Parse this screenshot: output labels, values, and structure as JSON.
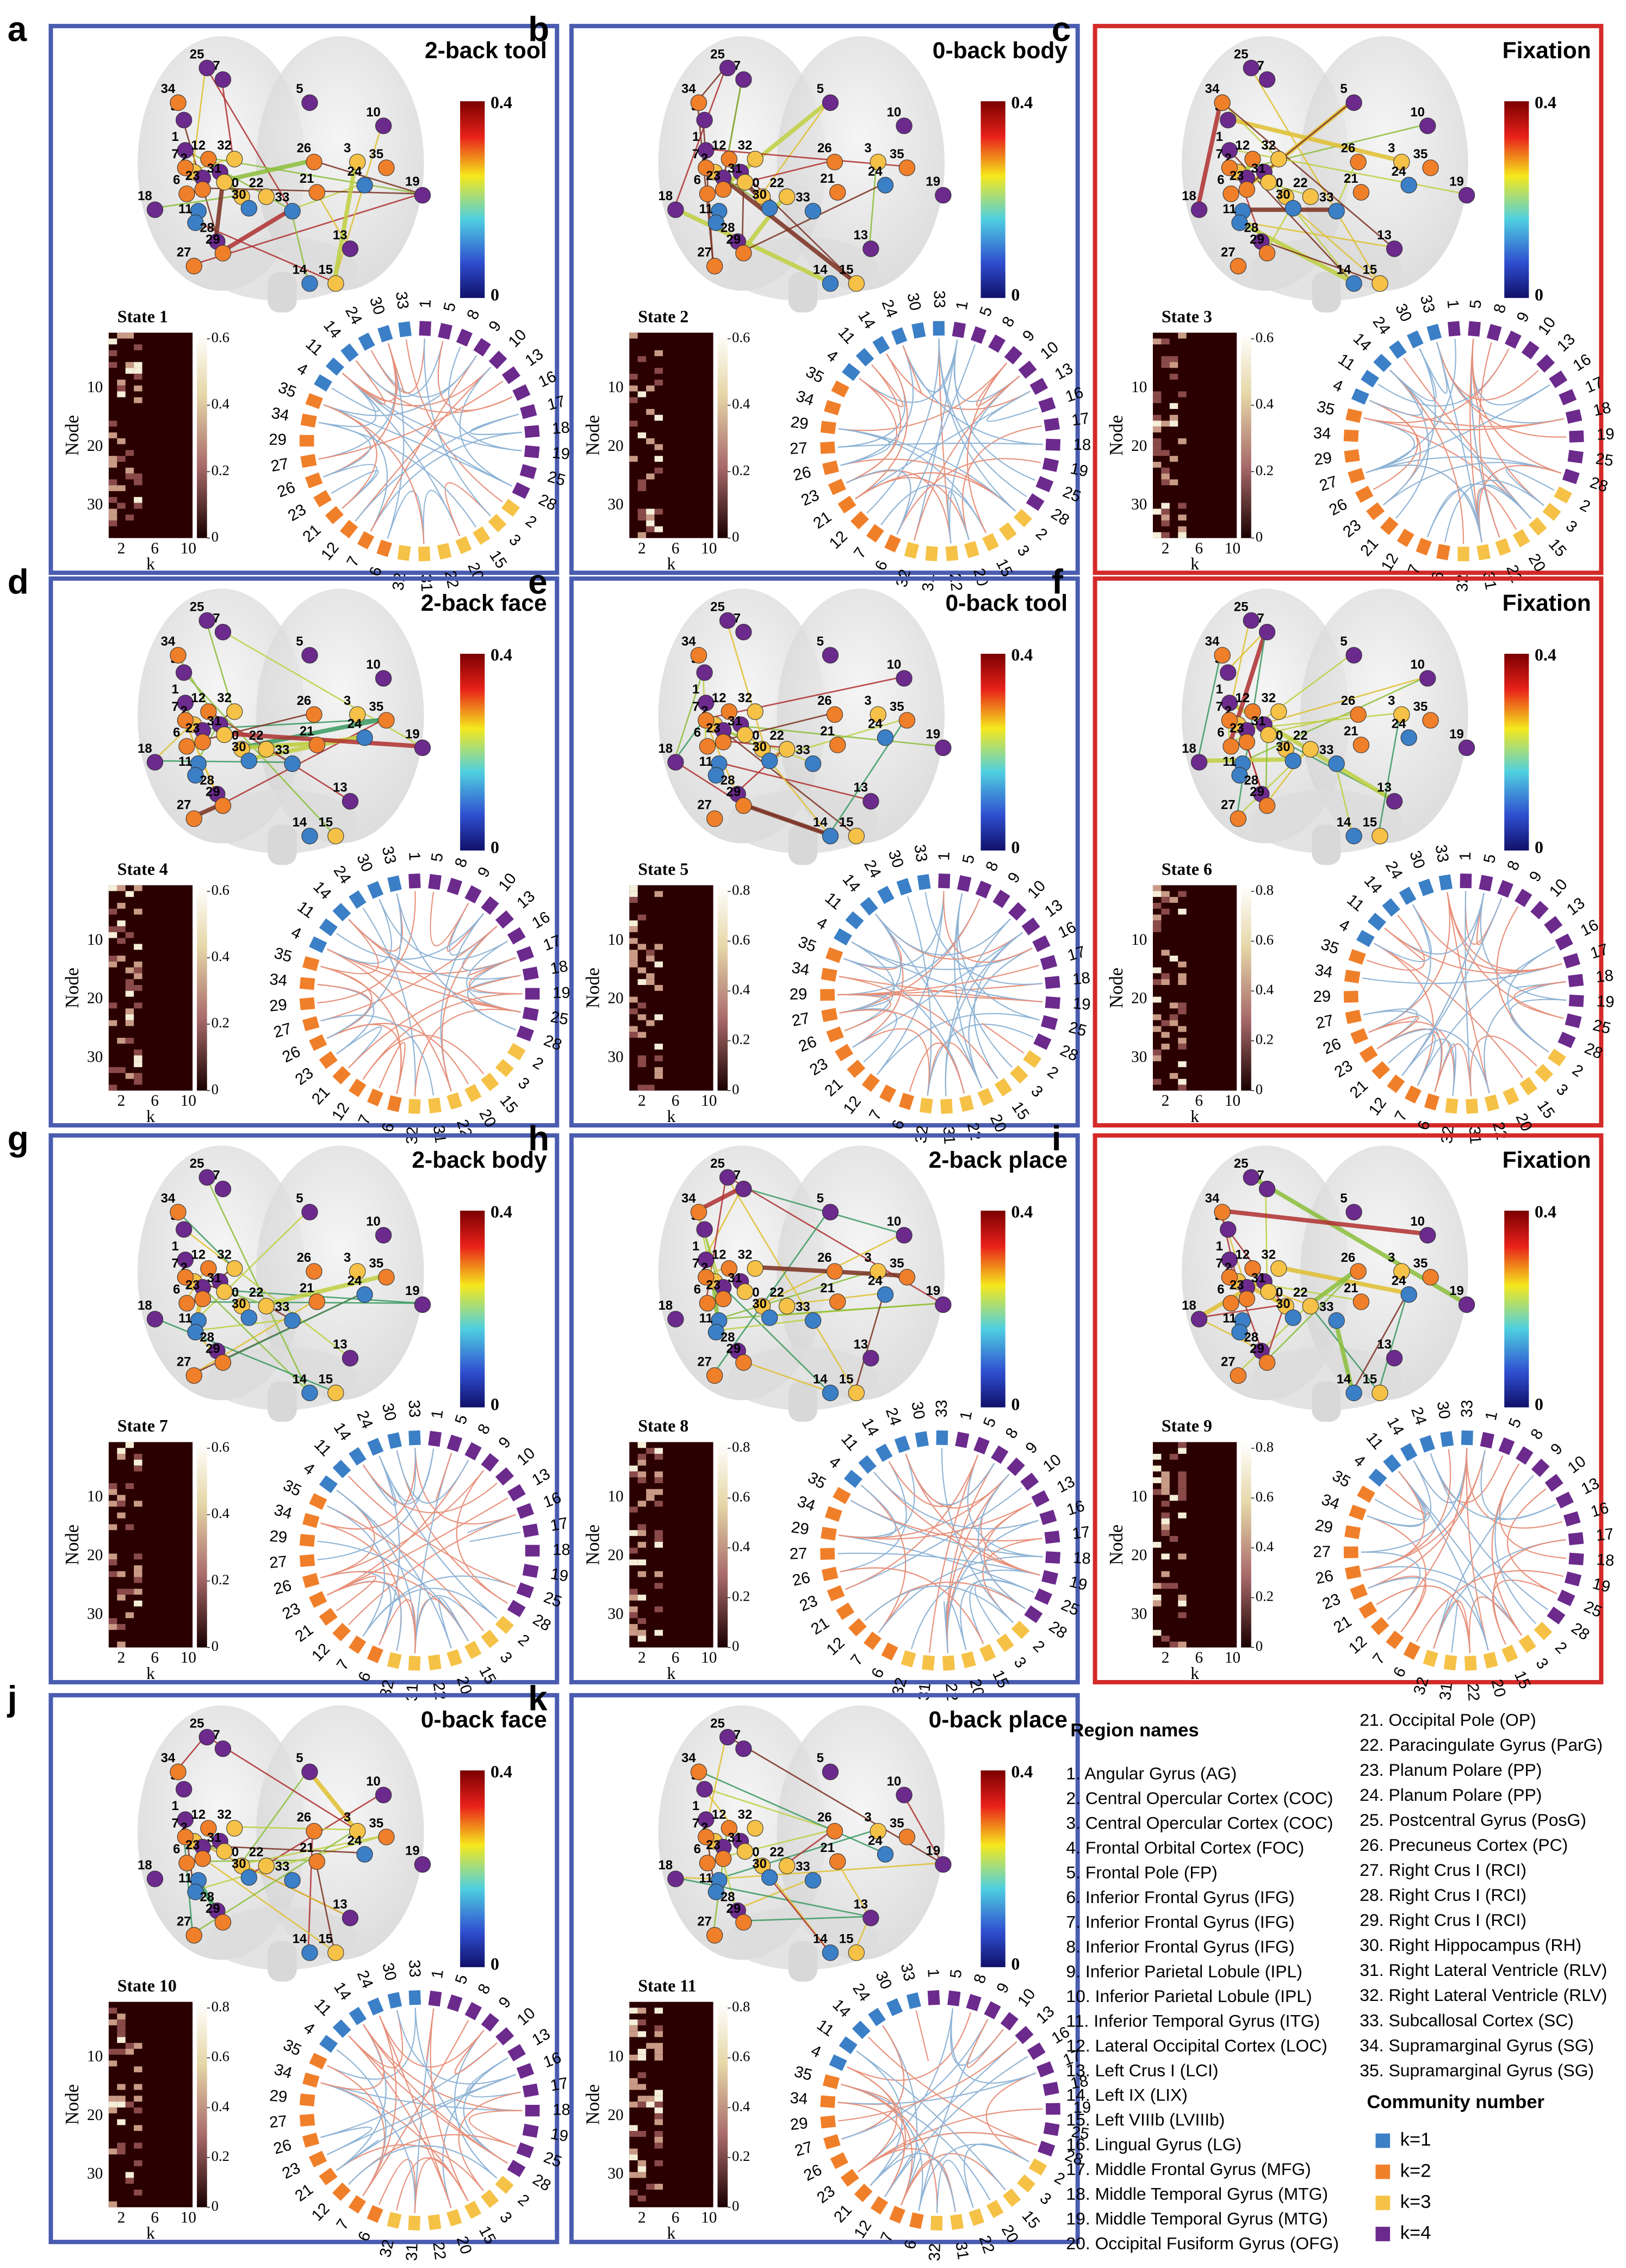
{
  "panels": [
    {
      "letter": "a",
      "title": "2-back tool",
      "state": "State 1",
      "frame": "#4a5cb0",
      "heat_ticks": [
        0,
        0.2,
        0.4,
        0.6
      ]
    },
    {
      "letter": "b",
      "title": "0-back body",
      "state": "State 2",
      "frame": "#4a5cb0",
      "heat_ticks": [
        0,
        0.2,
        0.4,
        0.6
      ]
    },
    {
      "letter": "c",
      "title": "Fixation",
      "state": "State 3",
      "frame": "#d42a2a",
      "heat_ticks": [
        0,
        0.2,
        0.4,
        0.6
      ]
    },
    {
      "letter": "d",
      "title": "2-back face",
      "state": "State 4",
      "frame": "#4a5cb0",
      "heat_ticks": [
        0,
        0.2,
        0.4,
        0.6
      ]
    },
    {
      "letter": "e",
      "title": "0-back tool",
      "state": "State 5",
      "frame": "#4a5cb0",
      "heat_ticks": [
        0,
        0.2,
        0.4,
        0.6,
        0.8
      ]
    },
    {
      "letter": "f",
      "title": "Fixation",
      "state": "State 6",
      "frame": "#d42a2a",
      "heat_ticks": [
        0,
        0.2,
        0.4,
        0.6,
        0.8
      ]
    },
    {
      "letter": "g",
      "title": "2-back body",
      "state": "State 7",
      "frame": "#4a5cb0",
      "heat_ticks": [
        0,
        0.2,
        0.4,
        0.6
      ]
    },
    {
      "letter": "h",
      "title": "2-back place",
      "state": "State 8",
      "frame": "#4a5cb0",
      "heat_ticks": [
        0,
        0.2,
        0.4,
        0.6,
        0.8
      ]
    },
    {
      "letter": "i",
      "title": "Fixation",
      "state": "State 9",
      "frame": "#d42a2a",
      "heat_ticks": [
        0,
        0.2,
        0.4,
        0.6,
        0.8
      ]
    },
    {
      "letter": "j",
      "title": "0-back face",
      "state": "State 10",
      "frame": "#4a5cb0",
      "heat_ticks": [
        0,
        0.2,
        0.4,
        0.6,
        0.8
      ]
    },
    {
      "letter": "k",
      "title": "0-back place",
      "state": "State 11",
      "frame": "#4a5cb0",
      "heat_ticks": [
        0,
        0.2,
        0.4,
        0.6,
        0.8
      ]
    }
  ],
  "brain_colorbar": {
    "max": "0.4",
    "min": "0"
  },
  "heatmap": {
    "y_label": "Node",
    "x_label": "k",
    "y_ticks": [
      "10",
      "20",
      "30"
    ],
    "x_ticks": [
      "2",
      "6",
      "10"
    ]
  },
  "nodes": [
    {
      "label": "1",
      "community": 4
    },
    {
      "label": "2",
      "community": 3
    },
    {
      "label": "3",
      "community": 3
    },
    {
      "label": "4",
      "community": 1
    },
    {
      "label": "5",
      "community": 4
    },
    {
      "label": "6",
      "community": 2
    },
    {
      "label": "7",
      "community": 2
    },
    {
      "label": "8",
      "community": 4
    },
    {
      "label": "9",
      "community": 4
    },
    {
      "label": "10",
      "community": 4
    },
    {
      "label": "11",
      "community": 1
    },
    {
      "label": "12",
      "community": 2
    },
    {
      "label": "13",
      "community": 4
    },
    {
      "label": "14",
      "community": 1
    },
    {
      "label": "15",
      "community": 3
    },
    {
      "label": "16",
      "community": 4
    },
    {
      "label": "17",
      "community": 4
    },
    {
      "label": "18",
      "community": 4
    },
    {
      "label": "19",
      "community": 4
    },
    {
      "label": "20",
      "community": 3
    },
    {
      "label": "21",
      "community": 2
    },
    {
      "label": "22",
      "community": 3
    },
    {
      "label": "23",
      "community": 2
    },
    {
      "label": "24",
      "community": 1
    },
    {
      "label": "25",
      "community": 4
    },
    {
      "label": "26",
      "community": 2
    },
    {
      "label": "27",
      "community": 2
    },
    {
      "label": "28",
      "community": 4
    },
    {
      "label": "29",
      "community": 2
    },
    {
      "label": "30",
      "community": 1
    },
    {
      "label": "31",
      "community": 3
    },
    {
      "label": "32",
      "community": 3
    },
    {
      "label": "33",
      "community": 1
    },
    {
      "label": "34",
      "community": 2
    },
    {
      "label": "35",
      "community": 2
    }
  ],
  "regions": {
    "title": "Region names",
    "items": [
      "1. Angular Gyrus (AG)",
      "2. Central Opercular Cortex (COC)",
      "3. Central Opercular Cortex (COC)",
      "4. Frontal Orbital Cortex (FOC)",
      "5. Frontal Pole (FP)",
      "6. Inferior Frontal Gyrus (IFG)",
      "7. Inferior Frontal Gyrus (IFG)",
      "8. Inferior Frontal Gyrus (IFG)",
      "9. Inferior Parietal Lobule (IPL)",
      "10. Inferior Parietal Lobule (IPL)",
      "11. Inferior Temporal Gyrus (ITG)",
      "12. Lateral Occipital Cortex (LOC)",
      "13. Left Crus I (LCI)",
      "14. Left IX (LIX)",
      "15. Left VIIIb (LVIIIb)",
      "16. Lingual Gyrus (LG)",
      "17. Middle Frontal Gyrus (MFG)",
      "18. Middle Temporal Gyrus (MTG)",
      "19. Middle Temporal Gyrus (MTG)",
      "20. Occipital Fusiform Gyrus (OFG)",
      "21. Occipital Pole (OP)",
      "22. Paracingulate Gyrus (ParG)",
      "23. Planum Polare (PP)",
      "24. Planum Polare (PP)",
      "25. Postcentral Gyrus (PosG)",
      "26. Precuneus Cortex (PC)",
      "27. Right Crus I (RCI)",
      "28. Right Crus I (RCI)",
      "29. Right Crus I (RCI)",
      "30. Right Hippocampus (RH)",
      "31. Right Lateral Ventricle (RLV)",
      "32. Right Lateral Ventricle (RLV)",
      "33. Subcallosal Cortex (SC)",
      "34. Supramarginal Gyrus (SG)",
      "35. Supramarginal Gyrus (SG)"
    ]
  },
  "community": {
    "title": "Community number",
    "items": [
      {
        "label": "k=1",
        "color": "#3b7fc6"
      },
      {
        "label": "k=2",
        "color": "#f07f2a"
      },
      {
        "label": "k=3",
        "color": "#f5c247"
      },
      {
        "label": "k=4",
        "color": "#6b2a8c"
      }
    ]
  }
}
